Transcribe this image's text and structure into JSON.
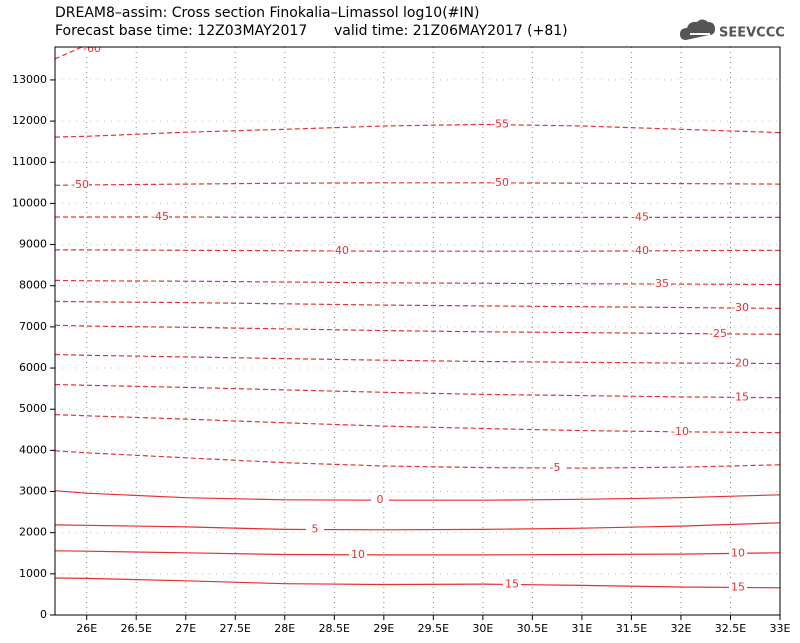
{
  "chart_data": {
    "type": "contour",
    "title": "DREAM8–assim: Cross section Finokalia–Limassol log10(#IN)",
    "subtitle": "Forecast base time: 12Z03MAY2017      valid time: 21Z06MAY2017 (+81)",
    "logo": "SEEVCCC",
    "color": "#e83030",
    "grid": true,
    "xlim": [
      25.68,
      33
    ],
    "ylim": [
      0,
      13800
    ],
    "xticks": [
      {
        "value": 26,
        "label": "26E"
      },
      {
        "value": 26.5,
        "label": "26.5E"
      },
      {
        "value": 27,
        "label": "27E"
      },
      {
        "value": 27.5,
        "label": "27.5E"
      },
      {
        "value": 28,
        "label": "28E"
      },
      {
        "value": 28.5,
        "label": "28.5E"
      },
      {
        "value": 29,
        "label": "29E"
      },
      {
        "value": 29.5,
        "label": "29.5E"
      },
      {
        "value": 30,
        "label": "30E"
      },
      {
        "value": 30.5,
        "label": "30.5E"
      },
      {
        "value": 31,
        "label": "31E"
      },
      {
        "value": 31.5,
        "label": "31.5E"
      },
      {
        "value": 32,
        "label": "32E"
      },
      {
        "value": 32.5,
        "label": "32.5E"
      },
      {
        "value": 33,
        "label": "33E"
      }
    ],
    "yticks": [
      0,
      1000,
      2000,
      3000,
      4000,
      5000,
      6000,
      7000,
      8000,
      9000,
      10000,
      11000,
      12000,
      13000
    ],
    "x": [
      25.68,
      26,
      27,
      28,
      29,
      30,
      31,
      32,
      33
    ],
    "series": [
      {
        "name": "-60",
        "linestyle": "dashed",
        "values": [
          13510,
          13850,
          null,
          null,
          null,
          null,
          null,
          null,
          null
        ]
      },
      {
        "name": "-55",
        "linestyle": "dashed",
        "values": [
          11610,
          11630,
          11730,
          11800,
          11880,
          11920,
          11880,
          11800,
          11720
        ]
      },
      {
        "name": "-50",
        "linestyle": "dashed",
        "values": [
          10440,
          10450,
          10470,
          10490,
          10500,
          10500,
          10490,
          10480,
          10470
        ]
      },
      {
        "name": "-45",
        "linestyle": "dashed",
        "values": [
          9670,
          9670,
          9670,
          9660,
          9660,
          9660,
          9660,
          9660,
          9660
        ]
      },
      {
        "name": "-40",
        "linestyle": "dashed",
        "values": [
          8870,
          8870,
          8860,
          8850,
          8840,
          8840,
          8840,
          8850,
          8860
        ]
      },
      {
        "name": "-35",
        "linestyle": "dashed",
        "values": [
          8130,
          8120,
          8110,
          8090,
          8070,
          8060,
          8050,
          8040,
          8030
        ]
      },
      {
        "name": "-30",
        "linestyle": "dashed",
        "values": [
          7620,
          7610,
          7590,
          7560,
          7530,
          7510,
          7490,
          7470,
          7450
        ]
      },
      {
        "name": "-25",
        "linestyle": "dashed",
        "values": [
          7040,
          7020,
          6990,
          6950,
          6910,
          6880,
          6860,
          6840,
          6820
        ]
      },
      {
        "name": "-20",
        "linestyle": "dashed",
        "values": [
          6330,
          6310,
          6270,
          6230,
          6190,
          6160,
          6140,
          6120,
          6110
        ]
      },
      {
        "name": "-15",
        "linestyle": "dashed",
        "values": [
          5600,
          5580,
          5530,
          5470,
          5410,
          5360,
          5330,
          5300,
          5280
        ]
      },
      {
        "name": "-10",
        "linestyle": "dashed",
        "values": [
          4870,
          4840,
          4760,
          4670,
          4590,
          4530,
          4480,
          4450,
          4430
        ]
      },
      {
        "name": "-5",
        "linestyle": "dashed",
        "values": [
          3990,
          3940,
          3820,
          3700,
          3620,
          3580,
          3570,
          3590,
          3650
        ]
      },
      {
        "name": "0",
        "linestyle": "solid",
        "values": [
          3020,
          2960,
          2850,
          2800,
          2790,
          2790,
          2810,
          2850,
          2920
        ]
      },
      {
        "name": "5",
        "linestyle": "solid",
        "values": [
          2190,
          2180,
          2140,
          2080,
          2070,
          2080,
          2110,
          2160,
          2240
        ]
      },
      {
        "name": "10",
        "linestyle": "solid",
        "values": [
          1560,
          1550,
          1510,
          1470,
          1460,
          1460,
          1470,
          1480,
          1510
        ]
      },
      {
        "name": "15",
        "linestyle": "solid",
        "values": [
          900,
          890,
          830,
          760,
          740,
          750,
          720,
          680,
          660
        ]
      }
    ]
  }
}
